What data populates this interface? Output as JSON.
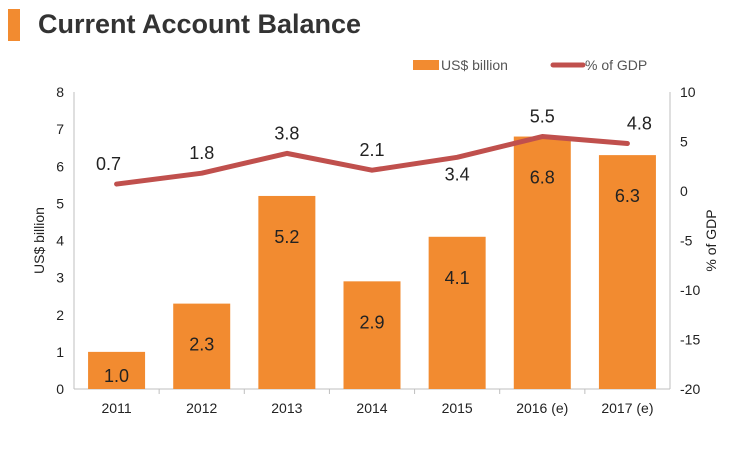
{
  "header": {
    "title": "Current Account Balance"
  },
  "colors": {
    "accent": "#f28b30",
    "bar": "#f28b30",
    "line": "#c0504d"
  },
  "chart_data": {
    "type": "bar+line",
    "categories": [
      "2011",
      "2012",
      "2013",
      "2014",
      "2015",
      "2016 (e)",
      "2017 (e)"
    ],
    "series": [
      {
        "name": "US$ billion",
        "type": "bar",
        "axis": "left",
        "values": [
          1.0,
          2.3,
          5.2,
          2.9,
          4.1,
          6.8,
          6.3
        ],
        "labels": [
          "1.0",
          "2.3",
          "5.2",
          "2.9",
          "4.1",
          "6.8",
          "6.3"
        ]
      },
      {
        "name": "% of GDP",
        "type": "line",
        "axis": "right",
        "values": [
          0.7,
          1.8,
          3.8,
          2.1,
          3.4,
          5.5,
          4.8
        ],
        "labels": [
          "0.7",
          "1.8",
          "3.8",
          "2.1",
          "3.4",
          "5.5",
          "4.8"
        ]
      }
    ],
    "ylabel": "US$ billion",
    "y2label": "% of GDP",
    "ylim": [
      0,
      8
    ],
    "y2lim": [
      -20,
      10
    ],
    "yticks": [
      "0",
      "1",
      "2",
      "3",
      "4",
      "5",
      "6",
      "7",
      "8"
    ],
    "y2ticks": [
      "-20",
      "-15",
      "-10",
      "-5",
      "0",
      "5",
      "10"
    ],
    "legend": "top-right",
    "grid": false
  }
}
